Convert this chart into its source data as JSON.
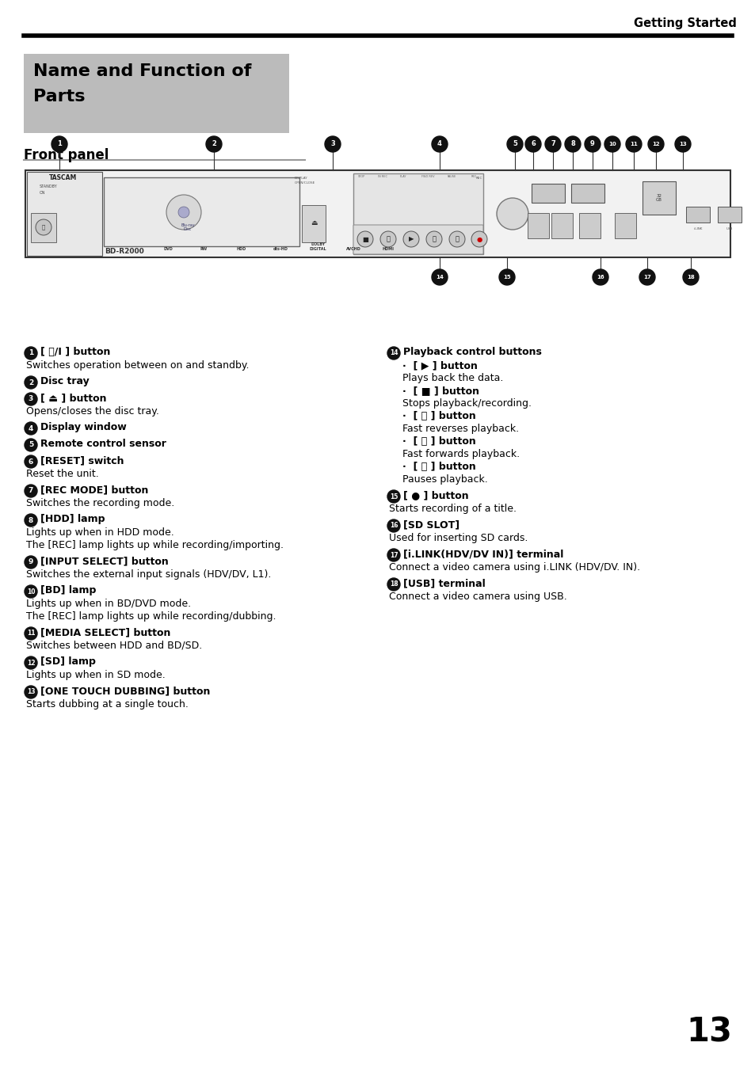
{
  "page_title": "Getting Started",
  "section_title_line1": "Name and Function of",
  "section_title_line2": "Parts",
  "subsection_title": "Front panel",
  "section_bg_color": "#bbbbbb",
  "header_line_color": "#000000",
  "body_bg_color": "#ffffff",
  "text_color": "#000000",
  "page_number": "13",
  "left_headers": [
    "[ ⏻/I ] button",
    "Disc tray",
    "[ ⏏ ] button",
    "Display window",
    "Remote control sensor",
    "[RESET] switch",
    "[REC MODE] button",
    "[HDD] lamp",
    "[INPUT SELECT] button",
    "[BD] lamp",
    "[MEDIA SELECT] button",
    "[SD] lamp",
    "[ONE TOUCH DUBBING] button"
  ],
  "left_bodies": [
    "Switches operation between on and standby.",
    "",
    "Opens/closes the disc tray.",
    "",
    "",
    "Reset the unit.",
    "Switches the recording mode.",
    "Lights up when in HDD mode.\nThe [REC] lamp lights up while recording/importing.",
    "Switches the external input signals (HDV/DV, L1).",
    "Lights up when in BD/DVD mode.\nThe [REC] lamp lights up while recording/dubbing.",
    "Switches between HDD and BD/SD.",
    "Lights up when in SD mode.",
    "Starts dubbing at a single touch."
  ],
  "left_nums": [
    "1",
    "2",
    "3",
    "4",
    "5",
    "6",
    "7",
    "8",
    "9",
    "10",
    "11",
    "12",
    "13"
  ],
  "right_headers": [
    "Playback control buttons",
    "[ ● ] button",
    "[SD SLOT]",
    "[i.LINK(HDV/DV IN)] terminal",
    "[USB] terminal"
  ],
  "right_bodies": [
    "",
    "Starts recording of a title.",
    "Used for inserting SD cards.",
    "Connect a video camera using i.LINK (HDV/DV. IN).",
    "Connect a video camera using USB."
  ],
  "right_nums": [
    "14",
    "15",
    "16",
    "17",
    "18"
  ],
  "sub_items": [
    [
      "[ ▶ ] button",
      "Plays back the data."
    ],
    [
      "[ ■ ] button",
      "Stops playback/recording."
    ],
    [
      "[ ⏪ ] button",
      "Fast reverses playback."
    ],
    [
      "[ ⏩ ] button",
      "Fast forwards playback."
    ],
    [
      "[ ⏸ ] button",
      "Pauses playback."
    ]
  ]
}
